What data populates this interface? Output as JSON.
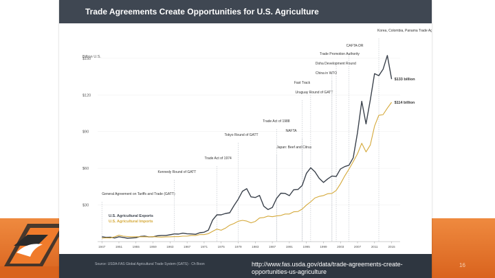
{
  "title": "Trade Agreements Create Opportunities for U.S. Agriculture",
  "source_note": "Source: USDA-FAS Global Agricultural Trade System (GATS) · Ch Boon",
  "url": "http://www.fas.usda.gov/data/trade-agreements-create-opportunities-us-agriculture",
  "page_number": "16",
  "colors": {
    "exports": "#3a414b",
    "imports": "#d4a838",
    "header": "#3f4752",
    "accent_band": "#e8732a"
  },
  "chart_data": {
    "type": "line",
    "ylabel": "Billion U.S.",
    "ylim": [
      0,
      155
    ],
    "xlim": [
      1946,
      2017
    ],
    "y_ticks": [
      {
        "value": 30,
        "label": "$30"
      },
      {
        "value": 60,
        "label": "$60"
      },
      {
        "value": 90,
        "label": "$90"
      },
      {
        "value": 120,
        "label": "$120"
      },
      {
        "value": 150,
        "label": "$150"
      }
    ],
    "x_ticks": [
      "1947",
      "1951",
      "1955",
      "1959",
      "1963",
      "1967",
      "1971",
      "1975",
      "1979",
      "1983",
      "1987",
      "1991",
      "1995",
      "1999",
      "2003",
      "2007",
      "2011",
      "2015"
    ],
    "legend": {
      "placement": "bottom-left",
      "entries": [
        {
          "label": "U.S. Agricultural Exports",
          "color": "#3a414b"
        },
        {
          "label": "U.S. Agricultural Imports",
          "color": "#d4a838"
        }
      ]
    },
    "series": [
      {
        "name": "U.S. Agricultural Exports",
        "color": "#3a414b",
        "end_label": "$133 billion",
        "x": [
          1947,
          1948,
          1949,
          1950,
          1951,
          1952,
          1953,
          1954,
          1955,
          1956,
          1957,
          1958,
          1959,
          1960,
          1961,
          1962,
          1963,
          1964,
          1965,
          1966,
          1967,
          1968,
          1969,
          1970,
          1971,
          1972,
          1973,
          1974,
          1975,
          1976,
          1977,
          1978,
          1979,
          1980,
          1981,
          1982,
          1983,
          1984,
          1985,
          1986,
          1987,
          1988,
          1989,
          1990,
          1991,
          1992,
          1993,
          1994,
          1995,
          1996,
          1997,
          1998,
          1999,
          2000,
          2001,
          2002,
          2003,
          2004,
          2005,
          2006,
          2007,
          2008,
          2009,
          2010,
          2011,
          2012,
          2013,
          2014,
          2015
        ],
        "values": [
          4,
          3.5,
          3.6,
          3,
          4,
          3.4,
          2.8,
          3,
          3.2,
          4.2,
          4.5,
          3.9,
          4,
          4.8,
          5,
          5,
          5.6,
          6.3,
          6.2,
          6.9,
          6.4,
          6.3,
          6,
          7.3,
          7.7,
          9.4,
          17.7,
          21.9,
          21.9,
          23,
          23.6,
          29.4,
          34.7,
          41.2,
          43.3,
          36.6,
          36.1,
          37.8,
          29,
          26.2,
          27.9,
          35.3,
          39.6,
          39.5,
          37.6,
          42.4,
          42.6,
          45.9,
          55.8,
          60.4,
          57.1,
          51.8,
          48.4,
          51.3,
          53.7,
          53.3,
          59.4,
          61.4,
          62.5,
          68.6,
          89.2,
          114.8,
          96.3,
          115.8,
          137.4,
          135.8,
          141,
          152.3,
          133
        ]
      },
      {
        "name": "U.S. Agricultural Imports",
        "color": "#d4a838",
        "end_label": "$114 billion",
        "x": [
          1947,
          1948,
          1949,
          1950,
          1951,
          1952,
          1953,
          1954,
          1955,
          1956,
          1957,
          1958,
          1959,
          1960,
          1961,
          1962,
          1963,
          1964,
          1965,
          1966,
          1967,
          1968,
          1969,
          1970,
          1971,
          1972,
          1973,
          1974,
          1975,
          1976,
          1977,
          1978,
          1979,
          1980,
          1981,
          1982,
          1983,
          1984,
          1985,
          1986,
          1987,
          1988,
          1989,
          1990,
          1991,
          1992,
          1993,
          1994,
          1995,
          1996,
          1997,
          1998,
          1999,
          2000,
          2001,
          2002,
          2003,
          2004,
          2005,
          2006,
          2007,
          2008,
          2009,
          2010,
          2011,
          2012,
          2013,
          2014,
          2015
        ],
        "values": [
          2.8,
          3.1,
          3,
          4,
          5.2,
          4.5,
          4.2,
          4,
          4,
          4,
          4,
          3.9,
          4.1,
          3.8,
          3.7,
          3.9,
          4,
          4.1,
          4.1,
          4.5,
          4.5,
          5,
          5,
          5.8,
          5.8,
          6.5,
          8.4,
          10.2,
          9.3,
          11,
          13.4,
          14.8,
          16.7,
          17.4,
          16.8,
          15.4,
          16.5,
          19.3,
          19.7,
          20.9,
          20.4,
          21,
          21.4,
          22.6,
          22.6,
          24.4,
          24.6,
          26.6,
          29.9,
          32.6,
          35.7,
          37,
          37.7,
          39.2,
          39.4,
          41.9,
          47.3,
          53.7,
          59.3,
          65.4,
          71.9,
          80.5,
          73.4,
          79,
          94.5,
          103.4,
          103.9,
          109.2,
          114
        ]
      }
    ],
    "annotations": [
      {
        "year": 1947,
        "label": "General Agreement on Tariffs and Trade (GATT)"
      },
      {
        "year": 1964,
        "label": "Kennedy Round of GATT"
      },
      {
        "year": 1974,
        "label": "Trade Act of 1974"
      },
      {
        "year": 1979,
        "label": "Tokyo Round of GATT"
      },
      {
        "year": 1988,
        "label": "Trade Act of 1988"
      },
      {
        "year": 1988,
        "label": "Japan: Beef and Citrus"
      },
      {
        "year": 1994,
        "label": "NAFTA"
      },
      {
        "year": 1994,
        "label": "Uruguay Round of GATT"
      },
      {
        "year": 1996,
        "label": "Fast Track"
      },
      {
        "year": 2001,
        "label": "China in WTO"
      },
      {
        "year": 2001,
        "label": "Doha Development Round"
      },
      {
        "year": 2002,
        "label": "Trade Promotion Authority"
      },
      {
        "year": 2005,
        "label": "CAFTA-DR"
      },
      {
        "year": 2012,
        "label": "Korea, Colombia, Panama Trade Agreements"
      }
    ]
  }
}
